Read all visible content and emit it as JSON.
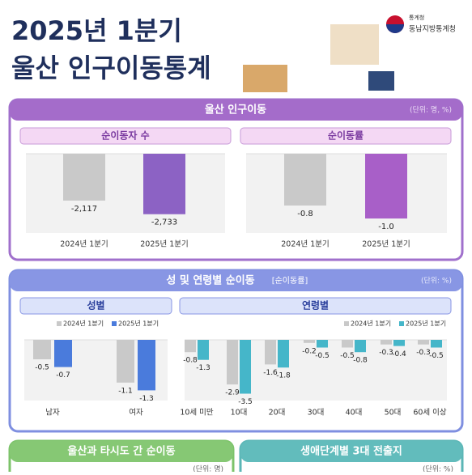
{
  "header": {
    "title_line1": "2025년 1분기",
    "title_line2": "울산 인구이동통계",
    "logo_org": "통계청",
    "logo_sub": "동남지방통계청"
  },
  "sections": [
    {
      "title": "울산 인구이동",
      "unit": "(단위: 명, %)"
    },
    {
      "title": "성 및 연령별 순이동",
      "tag": "[순이동률]",
      "unit": "(단위: %)"
    },
    {
      "title": "울산과 타시도 간 순이동",
      "unit": "(단위: 명)"
    },
    {
      "title": "생애단계별 3대 전출지",
      "unit": "(단위: %)"
    }
  ],
  "chart_data": [
    {
      "type": "bar",
      "title": "순이동자 수",
      "categories": [
        "2024년 1분기",
        "2025년 1분기"
      ],
      "values": [
        -2117,
        -2733
      ],
      "value_labels": [
        "-2,117",
        "-2,733"
      ],
      "colors": [
        "#c9c9c9",
        "#8c62c4"
      ],
      "ylim": [
        -3000,
        0
      ]
    },
    {
      "type": "bar",
      "title": "순이동률",
      "categories": [
        "2024년 1분기",
        "2025년 1분기"
      ],
      "values": [
        -0.8,
        -1.0
      ],
      "value_labels": [
        "-0.8",
        "-1.0"
      ],
      "colors": [
        "#c9c9c9",
        "#a85fc8"
      ],
      "ylim": [
        -1.2,
        0
      ]
    },
    {
      "type": "bar",
      "title": "성별",
      "categories": [
        "남자",
        "여자"
      ],
      "series": [
        {
          "name": "2024년 1분기",
          "color": "#c9c9c9",
          "values": [
            -0.5,
            -1.1
          ]
        },
        {
          "name": "2025년 1분기",
          "color": "#4a7bdc",
          "values": [
            -0.7,
            -1.3
          ]
        }
      ],
      "ylim": [
        -1.5,
        0
      ]
    },
    {
      "type": "bar",
      "title": "연령별",
      "categories": [
        "10세 미만",
        "10대",
        "20대",
        "30대",
        "40대",
        "50대",
        "60세 이상"
      ],
      "series": [
        {
          "name": "2024년 1분기",
          "color": "#c9c9c9",
          "values": [
            -0.8,
            -2.9,
            -1.6,
            -0.2,
            -0.5,
            -0.3,
            -0.3
          ]
        },
        {
          "name": "2025년 1분기",
          "color": "#45b6c9",
          "values": [
            -1.3,
            -3.5,
            -1.8,
            -0.5,
            -0.8,
            -0.4,
            -0.5
          ]
        }
      ],
      "ylim": [
        -4,
        0
      ]
    }
  ]
}
